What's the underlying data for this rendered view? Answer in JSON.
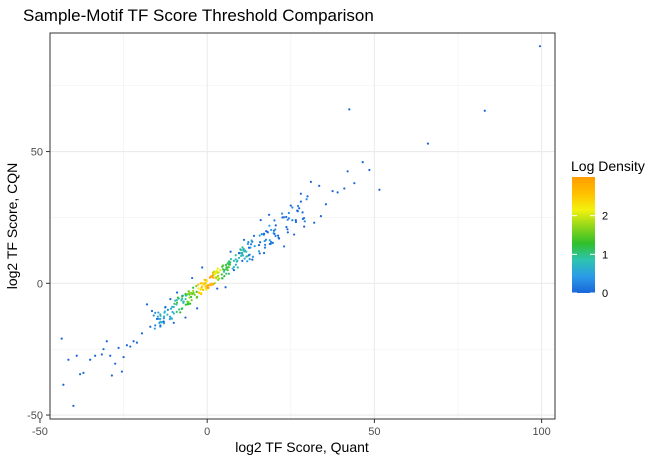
{
  "chart_data": {
    "type": "scatter",
    "title": "Sample-Motif TF Score Threshold Comparison",
    "xlabel": "log2 TF Score, Quant",
    "ylabel": "log2 TF Score, CQN",
    "xlim": [
      -47,
      104
    ],
    "ylim": [
      -51.5,
      95
    ],
    "xticks": [
      -50,
      0,
      50,
      100
    ],
    "xtick_labels": [
      "-50",
      "0",
      "50",
      "100"
    ],
    "yticks": [
      -50,
      0,
      50
    ],
    "ytick_labels": [
      "-50",
      "0",
      "50"
    ],
    "grid": true,
    "legend": {
      "title": "Log Density",
      "position": "right",
      "ticks": [
        0,
        1,
        2
      ],
      "tick_labels": [
        "0",
        "1",
        "2"
      ],
      "range": [
        0,
        3.0
      ],
      "colors": [
        "#1a66d9",
        "#2b9be8",
        "#2ec3b0",
        "#31c02a",
        "#8fd61a",
        "#f2f20d",
        "#ffc000",
        "#ff9d00"
      ]
    },
    "points": [
      {
        "x": 99.5,
        "y": 90.0,
        "d": 0.0
      },
      {
        "x": 83.0,
        "y": 65.5,
        "d": 0.0
      },
      {
        "x": 66.0,
        "y": 53.0,
        "d": 0.0
      },
      {
        "x": 42.5,
        "y": 66.0,
        "d": 0.0
      },
      {
        "x": 46.5,
        "y": 46.0,
        "d": 0.0
      },
      {
        "x": 42.0,
        "y": 42.5,
        "d": 0.0
      },
      {
        "x": 48.5,
        "y": 43.0,
        "d": 0.0
      },
      {
        "x": 51.5,
        "y": 35.5,
        "d": 0.0
      },
      {
        "x": 44.0,
        "y": 38.0,
        "d": 0.0
      },
      {
        "x": 39.0,
        "y": 34.5,
        "d": 0.0
      },
      {
        "x": 41.0,
        "y": 36.0,
        "d": 0.0
      },
      {
        "x": 35.5,
        "y": 30.0,
        "d": 0.0
      },
      {
        "x": 37.5,
        "y": 35.0,
        "d": 0.0
      },
      {
        "x": 33.5,
        "y": 37.0,
        "d": 0.0
      },
      {
        "x": 31.0,
        "y": 38.5,
        "d": 0.0
      },
      {
        "x": -43.0,
        "y": -38.5,
        "d": 0.0
      },
      {
        "x": -40.0,
        "y": -46.5,
        "d": 0.0
      },
      {
        "x": -43.5,
        "y": -21.0,
        "d": 0.0
      },
      {
        "x": -41.5,
        "y": -29.0,
        "d": 0.0
      },
      {
        "x": -39.0,
        "y": -27.5,
        "d": 0.0
      },
      {
        "x": -38.0,
        "y": -34.5,
        "d": 0.0
      },
      {
        "x": -37.0,
        "y": -34.0,
        "d": 0.0
      },
      {
        "x": -35.0,
        "y": -29.0,
        "d": 0.0
      },
      {
        "x": -33.5,
        "y": -27.5,
        "d": 0.0
      },
      {
        "x": -31.5,
        "y": -27.0,
        "d": 0.0
      },
      {
        "x": -31.0,
        "y": -25.0,
        "d": 0.0
      },
      {
        "x": -30.0,
        "y": -22.0,
        "d": 0.0
      },
      {
        "x": -29.0,
        "y": -27.5,
        "d": 0.0
      },
      {
        "x": -28.5,
        "y": -35.0,
        "d": 0.0
      },
      {
        "x": -27.5,
        "y": -30.5,
        "d": 0.0
      },
      {
        "x": -26.5,
        "y": -24.5,
        "d": 0.0
      },
      {
        "x": -25.5,
        "y": -33.5,
        "d": 0.0
      },
      {
        "x": -25.0,
        "y": -28.0,
        "d": 0.0
      },
      {
        "x": -24.0,
        "y": -23.5,
        "d": 0.0
      },
      {
        "x": -23.0,
        "y": -24.0,
        "d": 0.0
      },
      {
        "x": -22.0,
        "y": -22.0,
        "d": 0.0
      },
      {
        "x": -21.0,
        "y": -22.5,
        "d": 0.0
      },
      {
        "x": -19.5,
        "y": -19.0,
        "d": 0.0
      },
      {
        "x": -18.0,
        "y": -8.0,
        "d": 0.0
      },
      {
        "x": -17.0,
        "y": -16.5,
        "d": 0.0
      },
      {
        "x": -16.5,
        "y": -10.5,
        "d": 0.0
      },
      {
        "x": 29.0,
        "y": 21.5,
        "d": 0.0
      },
      {
        "x": 32.0,
        "y": 23.0,
        "d": 0.0
      },
      {
        "x": 34.0,
        "y": 25.5,
        "d": 0.0
      },
      {
        "x": 27.5,
        "y": 28.5,
        "d": 0.0
      },
      {
        "x": 30.0,
        "y": 33.0,
        "d": 0.0
      },
      {
        "x": 28.0,
        "y": 34.0,
        "d": 0.0
      },
      {
        "x": 25.0,
        "y": 29.5,
        "d": 0.0
      },
      {
        "x": 26.5,
        "y": 24.0,
        "d": 0.0
      },
      {
        "x": 22.5,
        "y": 25.0,
        "d": 0.0
      },
      {
        "x": 24.0,
        "y": 20.5,
        "d": 0.0
      },
      {
        "x": 20.5,
        "y": 22.0,
        "d": 0.0
      },
      {
        "x": 18.5,
        "y": 26.0,
        "d": 0.0
      },
      {
        "x": 16.0,
        "y": 24.0,
        "d": 0.0
      },
      {
        "x": 21.5,
        "y": 17.0,
        "d": 0.0
      },
      {
        "x": 19.0,
        "y": 15.0,
        "d": 0.0
      },
      {
        "x": 17.0,
        "y": 11.5,
        "d": 0.0
      },
      {
        "x": 15.5,
        "y": 14.5,
        "d": 0.0
      },
      {
        "x": 14.0,
        "y": 18.0,
        "d": 0.0
      },
      {
        "x": 12.5,
        "y": 13.5,
        "d": 0.0
      },
      {
        "x": 11.0,
        "y": 16.5,
        "d": 0.0
      },
      {
        "x": 10.5,
        "y": 8.5,
        "d": 0.0
      },
      {
        "x": 13.5,
        "y": 9.0,
        "d": 0.0
      },
      {
        "x": 23.0,
        "y": 14.0,
        "d": 0.0
      },
      {
        "x": 26.0,
        "y": 18.5,
        "d": 0.0
      },
      {
        "x": 18.0,
        "y": 19.5,
        "d": 0.0
      },
      {
        "x": 9.5,
        "y": 11.5,
        "d": 0.0
      },
      {
        "x": 8.0,
        "y": 5.0,
        "d": 0.0
      },
      {
        "x": 7.0,
        "y": 12.0,
        "d": 0.0
      },
      {
        "x": -13.0,
        "y": -14.5,
        "d": 0.0
      },
      {
        "x": -12.5,
        "y": -9.0,
        "d": 0.0
      },
      {
        "x": -15.0,
        "y": -13.5,
        "d": 0.0
      },
      {
        "x": -14.0,
        "y": -16.0,
        "d": 0.0
      },
      {
        "x": -11.0,
        "y": -6.0,
        "d": 0.0
      },
      {
        "x": -10.0,
        "y": -15.0,
        "d": 0.0
      },
      {
        "x": -9.0,
        "y": -3.5,
        "d": 0.0
      },
      {
        "x": -6.5,
        "y": -13.0,
        "d": 0.0
      },
      {
        "x": -3.0,
        "y": -9.5,
        "d": 0.0
      },
      {
        "x": 3.0,
        "y": -2.0,
        "d": 0.0
      },
      {
        "x": 5.5,
        "y": -1.5,
        "d": 0.0
      },
      {
        "x": -4.5,
        "y": 2.0,
        "d": 0.0
      },
      {
        "x": -1.5,
        "y": 6.0,
        "d": 0.0
      }
    ],
    "dense_band": {
      "segments": [
        {
          "x0": -16,
          "x1": -10,
          "d": 0.5,
          "n": 30
        },
        {
          "x0": -10,
          "x1": -6,
          "d": 1.0,
          "n": 28
        },
        {
          "x0": -6,
          "x1": -3,
          "d": 1.5,
          "n": 26
        },
        {
          "x0": -3,
          "x1": 0,
          "d": 2.4,
          "n": 28
        },
        {
          "x0": 0,
          "x1": 2,
          "d": 2.9,
          "n": 20
        },
        {
          "x0": 2,
          "x1": 4,
          "d": 2.0,
          "n": 18
        },
        {
          "x0": 4,
          "x1": 7,
          "d": 1.2,
          "n": 24
        },
        {
          "x0": 7,
          "x1": 12,
          "d": 0.8,
          "n": 30
        },
        {
          "x0": 12,
          "x1": 20,
          "d": 0.3,
          "n": 32
        },
        {
          "x0": 20,
          "x1": 30,
          "d": 0.1,
          "n": 26
        }
      ]
    }
  }
}
